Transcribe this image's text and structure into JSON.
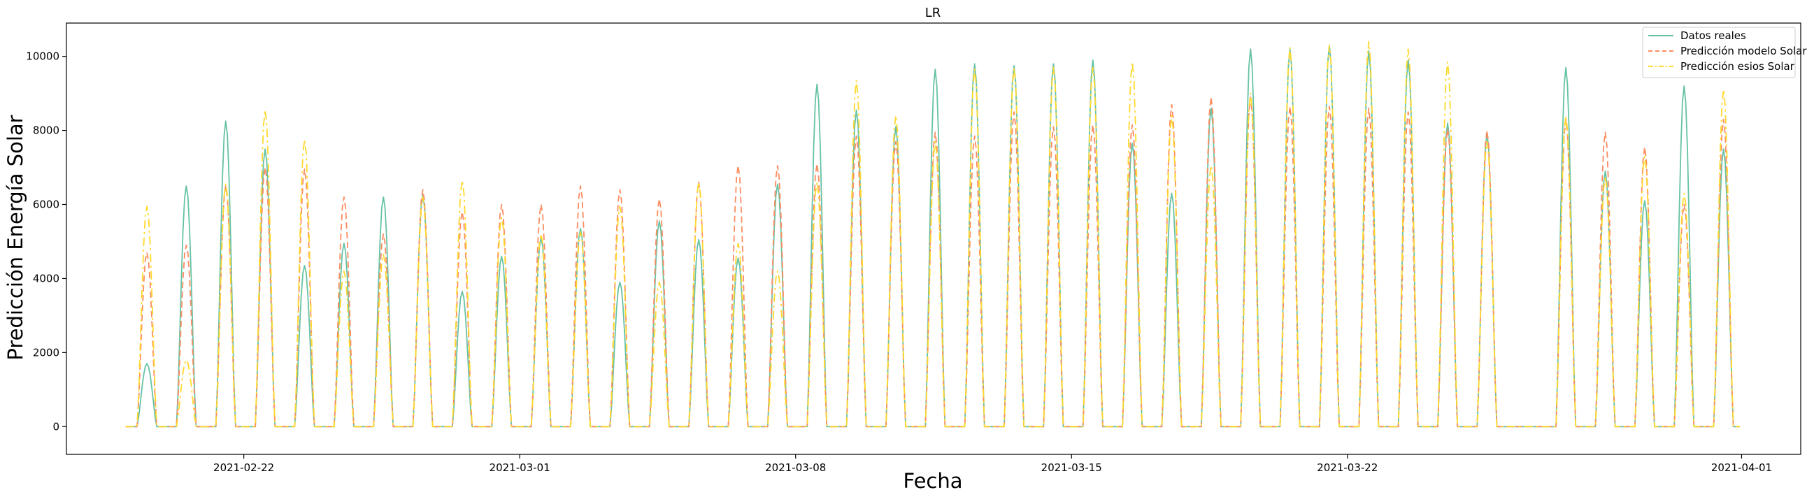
{
  "chart_data": {
    "type": "line",
    "title": "LR",
    "xlabel": "Fecha",
    "ylabel": "Predicción Energía Solar",
    "xlim": [
      "2021-02-17T12:00",
      "2021-04-02T12:00"
    ],
    "ylim": [
      -750,
      10900
    ],
    "x_ticks": [
      "2021-02-22",
      "2021-03-01",
      "2021-03-08",
      "2021-03-15",
      "2021-03-22",
      "2021-04-01"
    ],
    "y_ticks": [
      0,
      2000,
      4000,
      6000,
      8000,
      10000
    ],
    "y_tick_labels": [
      "0",
      "2000",
      "4000",
      "6000",
      "8000",
      "10000"
    ],
    "grid": false,
    "legend_position": "top-right",
    "x_start": "2021-02-19",
    "x_end": "2021-03-31",
    "x_unit": "day",
    "series": [
      {
        "name": "Datos reales",
        "color": "#66c2a5",
        "style": "solid",
        "daily_peaks": [
          1700,
          6500,
          8250,
          7500,
          4350,
          4950,
          6200,
          6250,
          3650,
          4600,
          5100,
          5350,
          3900,
          5550,
          5050,
          4550,
          6550,
          9250,
          8550,
          8100,
          9650,
          9800,
          9750,
          9800,
          9900,
          7650,
          6300,
          8600,
          10200,
          10200,
          10300,
          10150,
          9900,
          8200,
          7900,
          0,
          9700,
          6900,
          6100,
          9200,
          7500
        ]
      },
      {
        "name": "Predicción modelo Solar",
        "color": "#fc8d62",
        "style": "dashed",
        "daily_peaks": [
          4700,
          4900,
          6500,
          7000,
          6950,
          6200,
          5200,
          6400,
          5800,
          6000,
          6000,
          6500,
          6400,
          6150,
          6600,
          7050,
          7050,
          7100,
          7850,
          7700,
          7950,
          7850,
          8500,
          8100,
          8150,
          8150,
          8700,
          8900,
          8900,
          8650,
          8650,
          8600,
          8500,
          8050,
          8000,
          0,
          8300,
          7950,
          7550,
          6000,
          8300
        ]
      },
      {
        "name": "Predicción esios Solar",
        "color": "#ffd92f",
        "style": "dashdot",
        "daily_peaks": [
          5950,
          1800,
          6550,
          8550,
          7750,
          4200,
          4650,
          6200,
          6650,
          5650,
          5200,
          5250,
          5950,
          3900,
          6600,
          4950,
          4200,
          6600,
          9350,
          8400,
          7700,
          9650,
          9700,
          9700,
          9700,
          9850,
          8400,
          7050,
          9000,
          10250,
          10300,
          10400,
          10200,
          9850,
          7700,
          0,
          8400,
          6750,
          7300,
          6300,
          9100
        ]
      }
    ]
  }
}
